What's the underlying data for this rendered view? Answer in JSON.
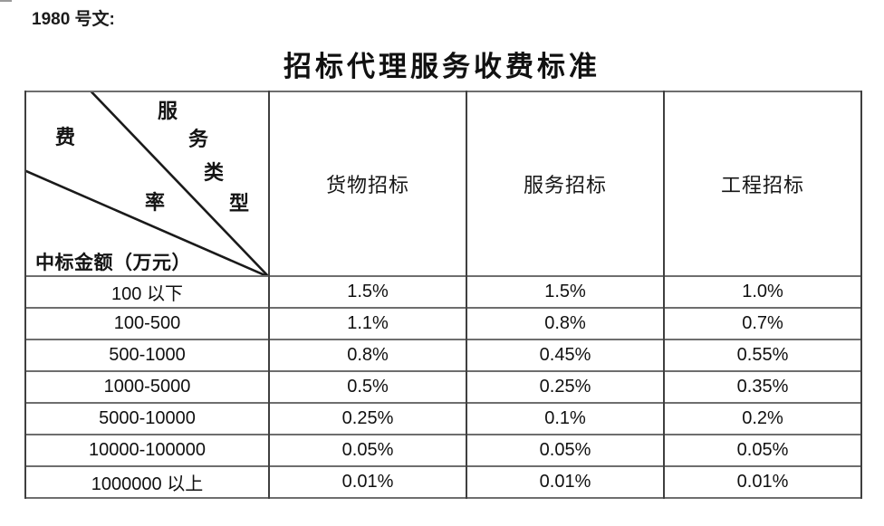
{
  "page": {
    "note": "1980 号文:",
    "title": "招标代理服务收费标准"
  },
  "table": {
    "corner": {
      "fee_chars": [
        "费",
        "率"
      ],
      "type_chars": [
        "服",
        "务",
        "类",
        "型"
      ],
      "row_axis_label": "中标金额（万元）"
    },
    "columns": [
      "货物招标",
      "服务招标",
      "工程招标"
    ],
    "rows": [
      [
        "100 以下",
        "1.5%",
        "1.5%",
        "1.0%"
      ],
      [
        "100-500",
        "1.1%",
        "0.8%",
        "0.7%"
      ],
      [
        "500-1000",
        "0.8%",
        "0.45%",
        "0.55%"
      ],
      [
        "1000-5000",
        "0.5%",
        "0.25%",
        "0.35%"
      ],
      [
        "5000-10000",
        "0.25%",
        "0.1%",
        "0.2%"
      ],
      [
        "10000-100000",
        "0.05%",
        "0.05%",
        "0.05%"
      ],
      [
        "1000000 以上",
        "0.01%",
        "0.01%",
        "0.01%"
      ]
    ],
    "colors": {
      "border": "#3f3f3f",
      "row_divider": "#6e6e6e",
      "diagonal_line": "#1a1a1a",
      "text": "#111111",
      "background": "#ffffff"
    }
  }
}
